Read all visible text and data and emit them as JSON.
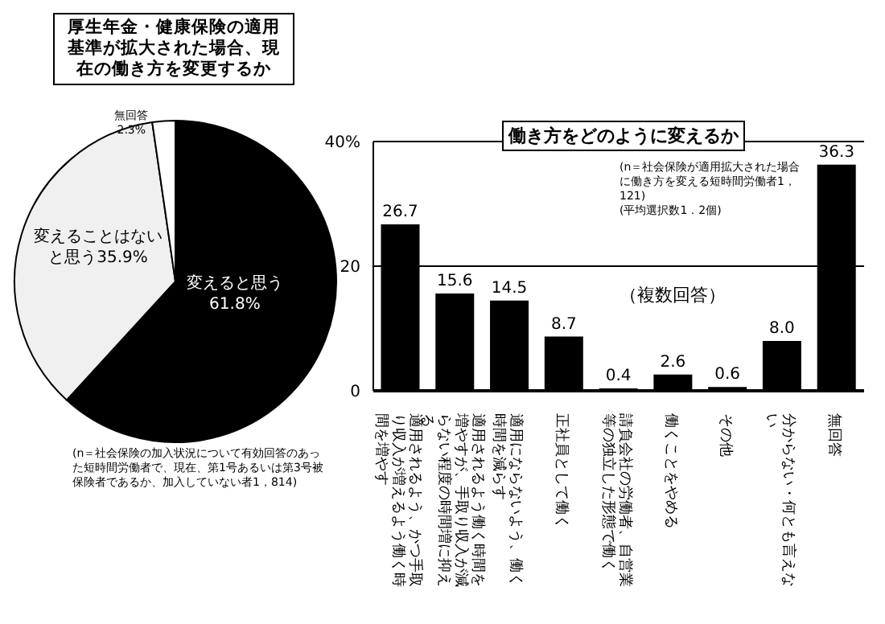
{
  "chart_data": [
    {
      "type": "pie",
      "title": "厚生年金・健康保険の適用基準が拡大された場合、現在の働き方を変更するか",
      "categories": [
        "変えると思う",
        "変えることはないと思う",
        "無回答"
      ],
      "values": [
        61.8,
        35.9,
        2.3
      ],
      "colors": [
        "#000000",
        "#f0f0f0",
        "#ffffff"
      ],
      "value_labels": [
        "61.8%",
        "35.9%",
        "2.3%"
      ],
      "annotations": [
        "(n＝社会保険の加入状況について有効回答のあった短時間労働者で、現在、第1号あるいは第3号被保険者であるか、加入していない者1，814)"
      ]
    },
    {
      "type": "bar",
      "title": "働き方をどのように変えるか",
      "categories": [
        "適用されるよう、かつ手取り収入が増えるよう働く時間を増やす",
        "適用されるよう働く時間を増やすが、手取り収入が減らない程度の時間増に抑える",
        "適用にならないよう、働く時間を減らす",
        "正社員として働く",
        "請負会社の労働者、自営業等の独立した形態で働く",
        "働くことをやめる",
        "その他",
        "分からない・何とも言えない",
        "無回答"
      ],
      "values": [
        26.7,
        15.6,
        14.5,
        8.7,
        0.4,
        2.6,
        0.6,
        8.0,
        36.3
      ],
      "color": "#000000",
      "ylim": [
        0,
        40
      ],
      "yticks": [
        0,
        20,
        {
          "value": 40,
          "label": "40%"
        }
      ],
      "grid": "y",
      "value_labels": [
        "26.7",
        "15.6",
        "14.5",
        "8.7",
        "0.4",
        "2.6",
        "0.6",
        "8.0",
        "36.3"
      ],
      "annotations": [
        "(n＝社会保険が適用拡大された場合に働き方を変える短時間労働者1，121)",
        "(平均選択数1．2個)",
        "（複数回答）"
      ]
    }
  ]
}
